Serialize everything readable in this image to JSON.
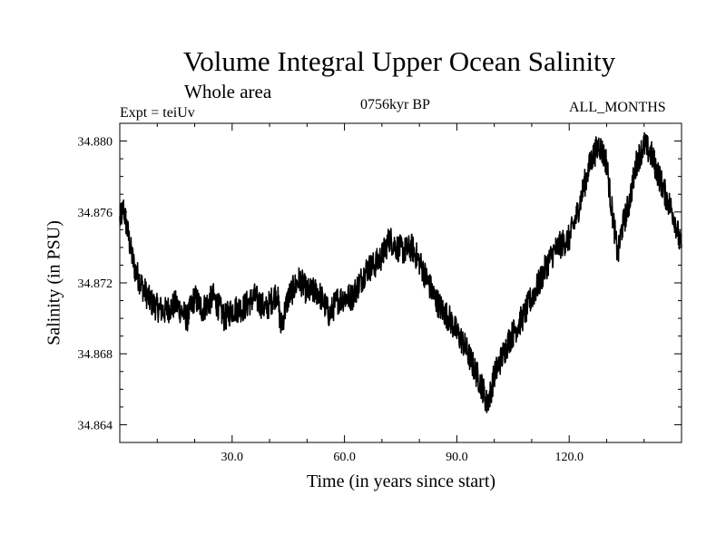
{
  "chart_data": {
    "type": "line",
    "title": "Volume Integral Upper Ocean Salinity",
    "subtitle": "Whole area",
    "experiment": "Expt = teiUv",
    "period": "0756kyr BP",
    "months": "ALL_MONTHS",
    "xlabel": "Time (in years since start)",
    "ylabel": "Salinity (in PSU)",
    "xlim": [
      0,
      150
    ],
    "ylim": [
      34.863,
      34.881
    ],
    "xticks": [
      30,
      60,
      90,
      120
    ],
    "xtick_labels": [
      "30.0",
      "60.0",
      "90.0",
      "120.0"
    ],
    "yticks": [
      34.864,
      34.868,
      34.872,
      34.876,
      34.88
    ],
    "ytick_labels": [
      "34.864",
      "34.868",
      "34.872",
      "34.876",
      "34.880"
    ],
    "grid": false,
    "series": [
      {
        "name": "Salinity",
        "x": [
          0,
          1,
          2,
          3,
          4,
          6,
          8,
          10,
          12,
          15,
          18,
          20,
          22,
          25,
          28,
          30,
          33,
          36,
          39,
          42,
          43,
          45,
          48,
          50,
          53,
          56,
          58,
          60,
          62,
          64,
          66,
          68,
          70,
          72,
          74,
          76,
          78,
          80,
          82,
          84,
          86,
          88,
          90,
          92,
          94,
          96,
          97,
          98,
          99,
          100,
          102,
          104,
          106,
          108,
          110,
          112,
          114,
          116,
          118,
          120,
          122,
          124,
          126,
          128,
          130,
          131,
          133,
          134,
          136,
          138,
          140,
          142,
          144,
          146,
          148,
          149,
          150
        ],
        "values": [
          34.8755,
          34.8762,
          34.875,
          34.8738,
          34.8728,
          34.8718,
          34.871,
          34.8706,
          34.8704,
          34.8708,
          34.87,
          34.8712,
          34.8705,
          34.8712,
          34.87,
          34.8705,
          34.8706,
          34.8712,
          34.8705,
          34.8715,
          34.8695,
          34.8712,
          34.8722,
          34.8715,
          34.8715,
          34.8702,
          34.871,
          34.8712,
          34.8712,
          34.872,
          34.8728,
          34.873,
          34.8735,
          34.8745,
          34.874,
          34.8738,
          34.874,
          34.8732,
          34.8722,
          34.8712,
          34.8705,
          34.87,
          34.8692,
          34.8685,
          34.8675,
          34.8665,
          34.866,
          34.8652,
          34.8658,
          34.8668,
          34.8678,
          34.8688,
          34.8695,
          34.8702,
          34.8712,
          34.872,
          34.873,
          34.8738,
          34.8742,
          34.8745,
          34.8758,
          34.8775,
          34.879,
          34.8798,
          34.8788,
          34.8768,
          34.8735,
          34.875,
          34.8765,
          34.8788,
          34.8798,
          34.8792,
          34.878,
          34.8768,
          34.8758,
          34.8748,
          34.8738
        ]
      }
    ]
  }
}
